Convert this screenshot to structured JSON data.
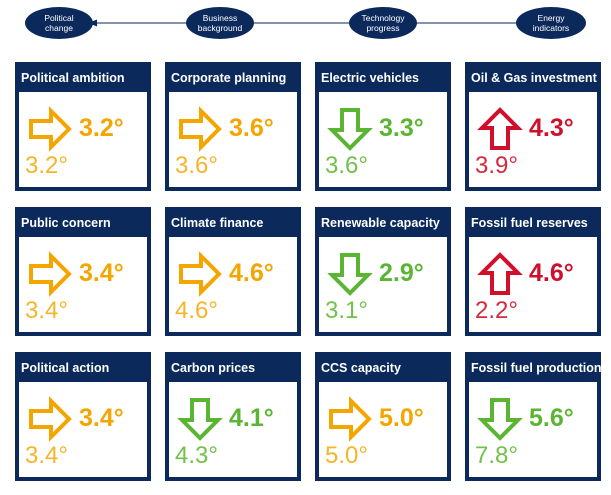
{
  "timeline": {
    "nodes": [
      {
        "label_line1": "Political",
        "label_line2": "change"
      },
      {
        "label_line1": "Business",
        "label_line2": "background"
      },
      {
        "label_line1": "Technology",
        "label_line2": "progress"
      },
      {
        "label_line1": "Energy",
        "label_line2": "indicators"
      }
    ]
  },
  "colors": {
    "navy": "#0b2a5b",
    "orange": "#f5a500",
    "green": "#5ab532",
    "red": "#d10f2a"
  },
  "cards": [
    {
      "title": "Political ambition",
      "value": "3.2°",
      "previous": "3.2°",
      "trend": "right",
      "color": "orange",
      "icon": "arrow-right-icon"
    },
    {
      "title": "Corporate planning",
      "value": "3.6°",
      "previous": "3.6°",
      "trend": "right",
      "color": "orange",
      "icon": "arrow-right-icon"
    },
    {
      "title": "Electric vehicles",
      "value": "3.3°",
      "previous": "3.6°",
      "trend": "down",
      "color": "green",
      "icon": "arrow-down-icon"
    },
    {
      "title": "Oil & Gas investment",
      "value": "4.3°",
      "previous": "3.9°",
      "trend": "up",
      "color": "red",
      "icon": "arrow-up-icon"
    },
    {
      "title": "Public concern",
      "value": "3.4°",
      "previous": "3.4°",
      "trend": "right",
      "color": "orange",
      "icon": "arrow-right-icon"
    },
    {
      "title": "Climate finance",
      "value": "4.6°",
      "previous": "4.6°",
      "trend": "right",
      "color": "orange",
      "icon": "arrow-right-icon"
    },
    {
      "title": "Renewable capacity",
      "value": "2.9°",
      "previous": "3.1°",
      "trend": "down",
      "color": "green",
      "icon": "arrow-down-icon"
    },
    {
      "title": "Fossil fuel reserves",
      "value": "4.6°",
      "previous": "2.2°",
      "trend": "up",
      "color": "red",
      "icon": "arrow-up-icon"
    },
    {
      "title": "Political action",
      "value": "3.4°",
      "previous": "3.4°",
      "trend": "right",
      "color": "orange",
      "icon": "arrow-right-icon"
    },
    {
      "title": "Carbon prices",
      "value": "4.1°",
      "previous": "4.3°",
      "trend": "down",
      "color": "green",
      "icon": "arrow-down-icon"
    },
    {
      "title": "CCS capacity",
      "value": "5.0°",
      "previous": "5.0°",
      "trend": "right",
      "color": "orange",
      "icon": "arrow-right-icon"
    },
    {
      "title": "Fossil fuel production",
      "value": "5.6°",
      "previous": "7.8°",
      "trend": "down",
      "color": "green",
      "icon": "arrow-down-icon"
    }
  ]
}
